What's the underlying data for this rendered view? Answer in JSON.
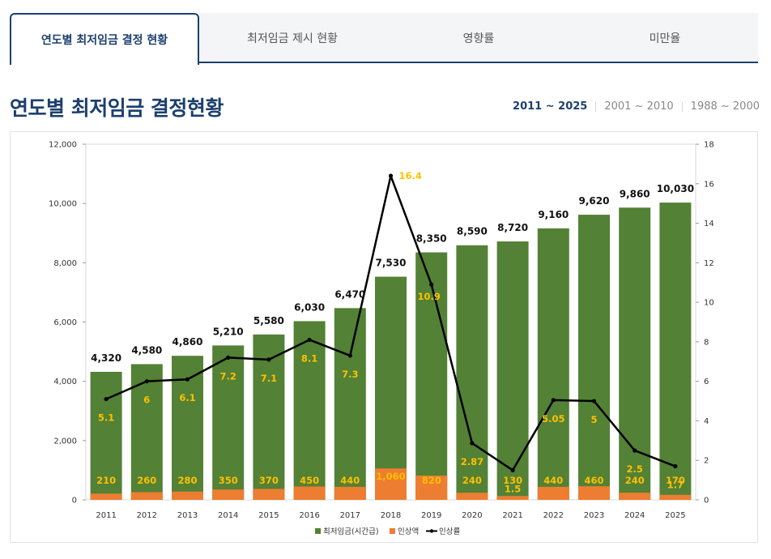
{
  "tabs": [
    {
      "label": "연도별 최저임금 결정 현황"
    },
    {
      "label": "최저임금 제시 현황"
    },
    {
      "label": "영향률"
    },
    {
      "label": "미만율"
    }
  ],
  "heading": "연도별 최저임금 결정현황",
  "ranges": [
    "2011 ~ 2025",
    "2001 ~ 2010",
    "1988 ~ 2000"
  ],
  "colors": {
    "wage": "#538135",
    "increase": "#ed7d31",
    "rate": "#000000",
    "rateLabel": "#ffc000",
    "brand": "#1d3f6e"
  },
  "chart_data": {
    "type": "bar",
    "categories": [
      "2011",
      "2012",
      "2013",
      "2014",
      "2015",
      "2016",
      "2017",
      "2018",
      "2019",
      "2020",
      "2021",
      "2022",
      "2023",
      "2024",
      "2025"
    ],
    "series": [
      {
        "name": "최저임금(시간급)",
        "type": "bar",
        "axis": "left",
        "values": [
          4320,
          4580,
          4860,
          5210,
          5580,
          6030,
          6470,
          7530,
          8350,
          8590,
          8720,
          9160,
          9620,
          9860,
          10030
        ],
        "labels": [
          "4,320",
          "4,580",
          "4,860",
          "5,210",
          "5,580",
          "6,030",
          "6,470",
          "7,530",
          "8,350",
          "8,590",
          "8,720",
          "9,160",
          "9,620",
          "9,860",
          "10,030"
        ]
      },
      {
        "name": "인상액",
        "type": "bar",
        "axis": "left",
        "values": [
          210,
          260,
          280,
          350,
          370,
          450,
          440,
          1060,
          820,
          240,
          130,
          440,
          460,
          240,
          170
        ],
        "labels": [
          "210",
          "260",
          "280",
          "350",
          "370",
          "450",
          "440",
          "1,060",
          "820",
          "240",
          "130",
          "440",
          "460",
          "240",
          "170"
        ]
      },
      {
        "name": "인상률",
        "type": "line",
        "axis": "right",
        "values": [
          5.1,
          6,
          6.1,
          7.2,
          7.1,
          8.1,
          7.3,
          16.4,
          10.9,
          2.87,
          1.5,
          5.05,
          5,
          2.5,
          1.7
        ],
        "labels": [
          "5.1",
          "6",
          "6.1",
          "7.2",
          "7.1",
          "8.1",
          "7.3",
          "16.4",
          "10.9",
          "2.87",
          "1.5",
          "5.05",
          "5",
          "2.5",
          "1.7"
        ]
      }
    ],
    "yTicks": [
      "0",
      "2,000",
      "4,000",
      "6,000",
      "8,000",
      "10,000",
      "12,000"
    ],
    "ylim": [
      0,
      12000
    ],
    "y2Ticks": [
      "0",
      "2",
      "4",
      "6",
      "8",
      "10",
      "12",
      "14",
      "16",
      "18"
    ],
    "y2lim": [
      0,
      18
    ],
    "legend": [
      "최저임금(시간급)",
      "인상액",
      "인상률"
    ],
    "legend_position": "bottom"
  }
}
